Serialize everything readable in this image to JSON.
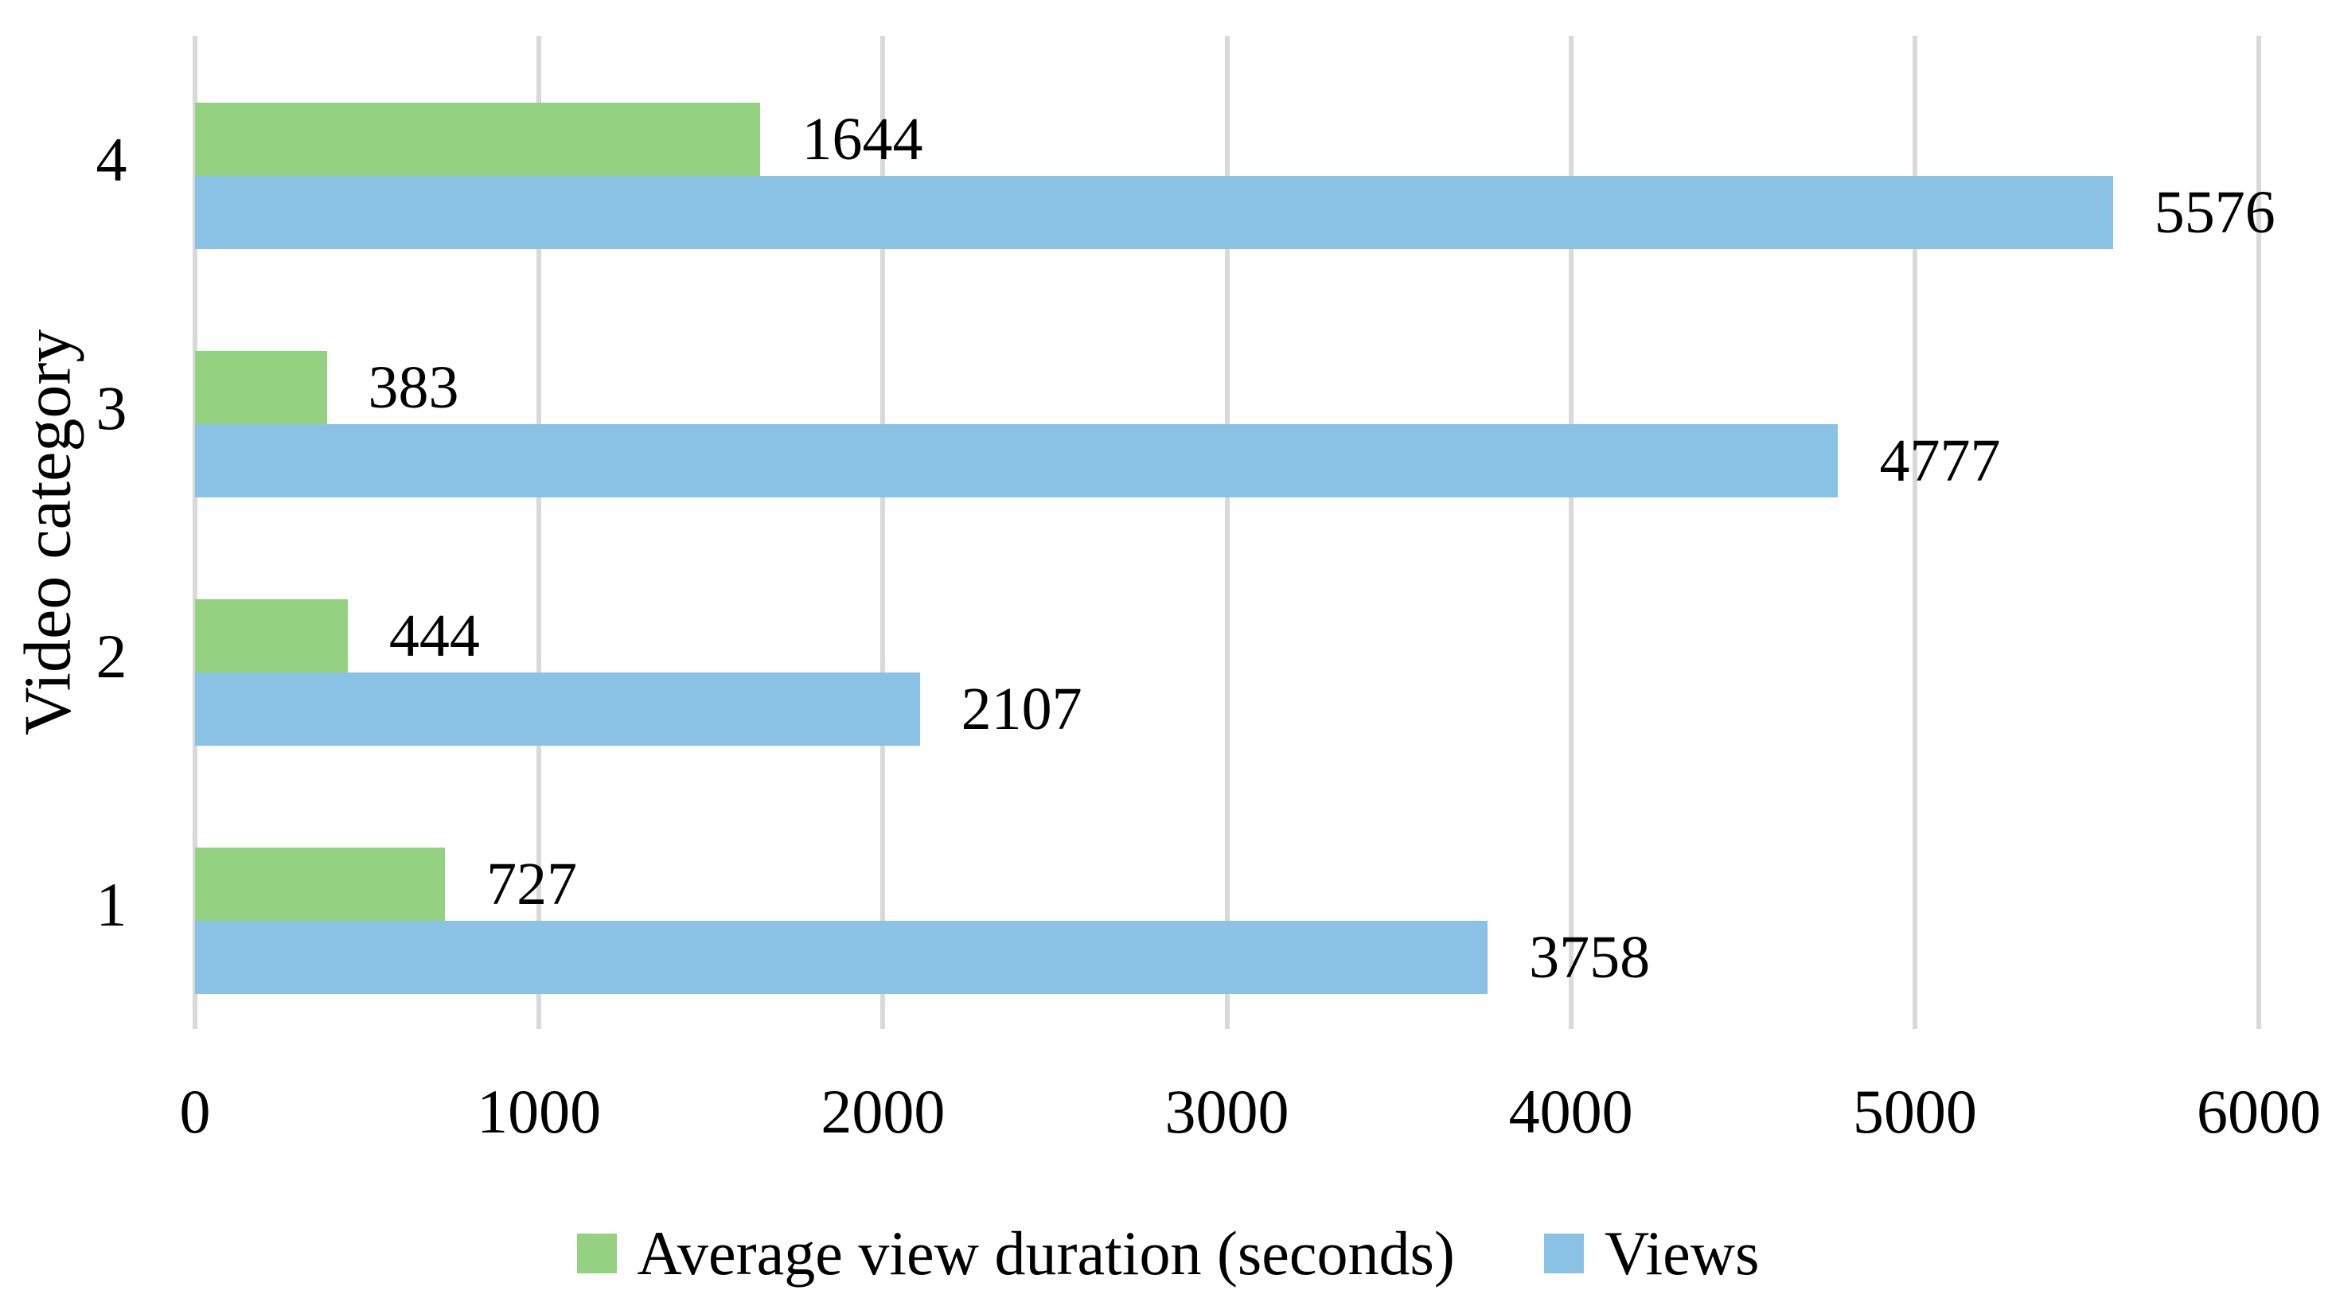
{
  "chart_data": {
    "type": "bar",
    "orientation": "horizontal",
    "title": "",
    "xlabel": "",
    "ylabel": "Video category",
    "categories": [
      "4",
      "3",
      "2",
      "1"
    ],
    "series": [
      {
        "name": "Average view duration (seconds)",
        "color": "#94D180",
        "values": [
          1644,
          383,
          444,
          727
        ]
      },
      {
        "name": "Views",
        "color": "#8AC2E5",
        "values": [
          5576,
          4777,
          2107,
          3758
        ]
      }
    ],
    "xlim": [
      0,
      6000
    ],
    "x_ticks": [
      0,
      1000,
      2000,
      3000,
      4000,
      5000,
      6000
    ],
    "data_labels": true,
    "grid": "vertical",
    "grid_color": "#D9D9D9",
    "axis_line_color": "#D9D9D9",
    "text_color": "#000000",
    "legend_position": "bottom"
  }
}
